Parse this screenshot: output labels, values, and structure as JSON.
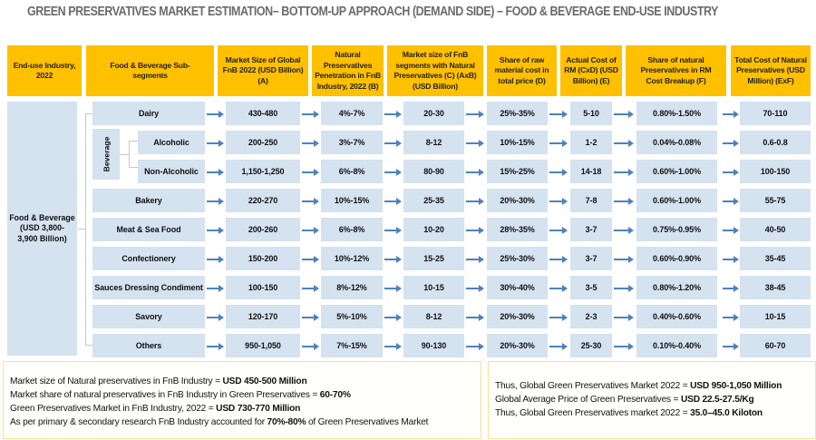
{
  "title": "GREEN PRESERVATIVES MARKET ESTIMATION– BOTTOM-UP APPROACH (DEMAND SIDE) – FOOD & BEVERAGE END-USE INDUSTRY",
  "headers": {
    "end_use": "End-use Industry, 2022",
    "subsegments": "Food & Beverage Sub-segments",
    "market_size_a": "Market Size of Global FnB 2022 (USD Billion) (A)",
    "penetration_b": "Natural Preservatives Penetration in FnB Industry, 2022 (B)",
    "segment_size_c": "Market size of FnB segments with Natural Preservatives (C) (AxB) (USD Billion)",
    "raw_share_d": "Share of raw material cost in total price (D)",
    "actual_cost_e": "Actual Cost of RM (CxD) (USD Billion) (E)",
    "natural_share_f": "Share of natural Preservatives in RM Cost Breakup (F)",
    "total_cost": "Total Cost of Natural Preservatives (USD Million) (ExF)"
  },
  "industry": {
    "label": "Food & Beverage (USD 3,800-3,900 Billion)",
    "line1": "Food & Beverage",
    "line2": "(USD 3,800-",
    "line3": "3,900 Billion)"
  },
  "beverage_group_label": "Beverage",
  "rows": [
    {
      "segment": "Dairy",
      "a": "430-480",
      "b": "4%-7%",
      "c": "20-30",
      "d": "25%-35%",
      "e": "5-10",
      "f": "0.80%-1.50%",
      "total": "70-110"
    },
    {
      "segment": "Alcoholic",
      "a": "200-250",
      "b": "3%-7%",
      "c": "8-12",
      "d": "10%-15%",
      "e": "1-2",
      "f": "0.04%-0.08%",
      "total": "0.6-0.8"
    },
    {
      "segment": "Non-Alcoholic",
      "a": "1,150-1,250",
      "b": "6%-8%",
      "c": "80-90",
      "d": "15%-25%",
      "e": "14-18",
      "f": "0.60%-1.00%",
      "total": "100-150"
    },
    {
      "segment": "Bakery",
      "a": "220-270",
      "b": "10%-15%",
      "c": "25-35",
      "d": "20%-30%",
      "e": "7-8",
      "f": "0.60%-1.00%",
      "total": "55-75"
    },
    {
      "segment": "Meat & Sea Food",
      "a": "200-260",
      "b": "6%-8%",
      "c": "10-20",
      "d": "28%-35%",
      "e": "3-7",
      "f": "0.75%-0.95%",
      "total": "40-50"
    },
    {
      "segment": "Confectionery",
      "a": "150-200",
      "b": "10%-12%",
      "c": "15-25",
      "d": "25%-30%",
      "e": "3-7",
      "f": "0.60%-0.90%",
      "total": "35-45"
    },
    {
      "segment": "Sauces Dressing Condiment",
      "a": "100-150",
      "b": "8%-12%",
      "c": "10-15",
      "d": "30%-40%",
      "e": "3-5",
      "f": "0.80%-1.20%",
      "total": "38-45"
    },
    {
      "segment": "Savory",
      "a": "120-170",
      "b": "5%-10%",
      "c": "8-12",
      "d": "20%-30%",
      "e": "2-3",
      "f": "0.40%-0.60%",
      "total": "10-15"
    },
    {
      "segment": "Others",
      "a": "950-1,050",
      "b": "7%-15%",
      "c": "90-130",
      "d": "20%-30%",
      "e": "25-30",
      "f": "0.10%-0.40%",
      "total": "60-70"
    }
  ],
  "summary_left": [
    {
      "text": "Market size of Natural preservatives in FnB Industry = ",
      "bold": "USD 450-500 Million",
      "tail": ""
    },
    {
      "text": "Market share of natural preservatives in FnB Industry in Green Preservatives = ",
      "bold": "60-70%",
      "tail": ""
    },
    {
      "text": "Green Preservatives Market in FnB Industry, 2022 = ",
      "bold": "USD 730-770 Million",
      "tail": ""
    },
    {
      "text": "As per primary & secondary research FnB Industry accounted for ",
      "bold": "70%-80%",
      "tail": " of Green Preservatives Market"
    }
  ],
  "summary_right": [
    {
      "text": "Thus, Global Green Preservatives Market 2022 = ",
      "bold": "USD 950-1,050 Million",
      "tail": ""
    },
    {
      "text": "Global Average Price of Green Preservatives = ",
      "bold": "USD 22.5-27.5/Kg",
      "tail": ""
    },
    {
      "text": "Thus, Global Green Preservatives market 2022 = ",
      "bold": "35.0–45.0 Kiloton",
      "tail": ""
    }
  ],
  "colors": {
    "header_bg": "#ffc000",
    "cell_bg": "#d5e2ef",
    "arrow": "#4f81bd",
    "title": "#6b6b6b",
    "summary_border": "#f3e39b"
  }
}
